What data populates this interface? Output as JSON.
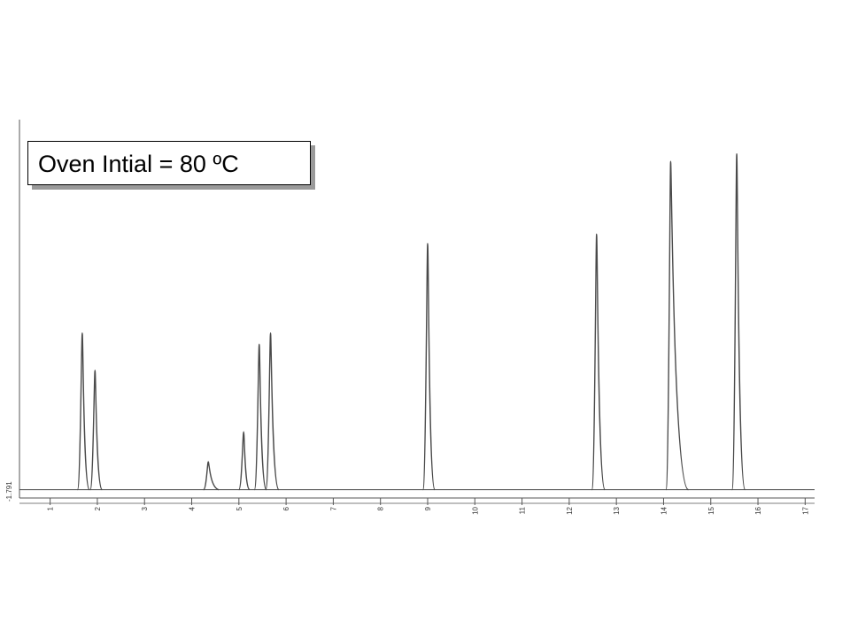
{
  "annotation": {
    "text": "Oven Intial = 80 ºC"
  },
  "colors": {
    "trace": "#4a4a4a",
    "axis": "#555555",
    "shadow": "#9a9a9a"
  },
  "chart_data": {
    "type": "line",
    "title": "",
    "xlabel": "",
    "ylabel": "",
    "xlim": [
      0.35,
      17.2
    ],
    "ylim": [
      0,
      100
    ],
    "x_ticks": [
      "1",
      "2",
      "3",
      "4",
      "5",
      "6",
      "7",
      "8",
      "9",
      "10",
      "11",
      "12",
      "13",
      "14",
      "15",
      "16",
      "17"
    ],
    "y_tick_label": "-1.791",
    "grid": false,
    "baseline_level": 0.8,
    "peaks": [
      {
        "rt": 1.68,
        "height": 42,
        "tail": 0.06
      },
      {
        "rt": 1.95,
        "height": 32,
        "tail": 0.06
      },
      {
        "rt": 4.35,
        "height": 7.5,
        "tail": 0.09
      },
      {
        "rt": 5.1,
        "height": 15.5,
        "tail": 0.05
      },
      {
        "rt": 5.43,
        "height": 39,
        "tail": 0.06
      },
      {
        "rt": 5.67,
        "height": 42,
        "tail": 0.07
      },
      {
        "rt": 9.0,
        "height": 66,
        "tail": 0.06
      },
      {
        "rt": 12.58,
        "height": 68.5,
        "tail": 0.07
      },
      {
        "rt": 14.15,
        "height": 88,
        "tail": 0.15
      },
      {
        "rt": 15.55,
        "height": 90,
        "tail": 0.07
      }
    ]
  }
}
